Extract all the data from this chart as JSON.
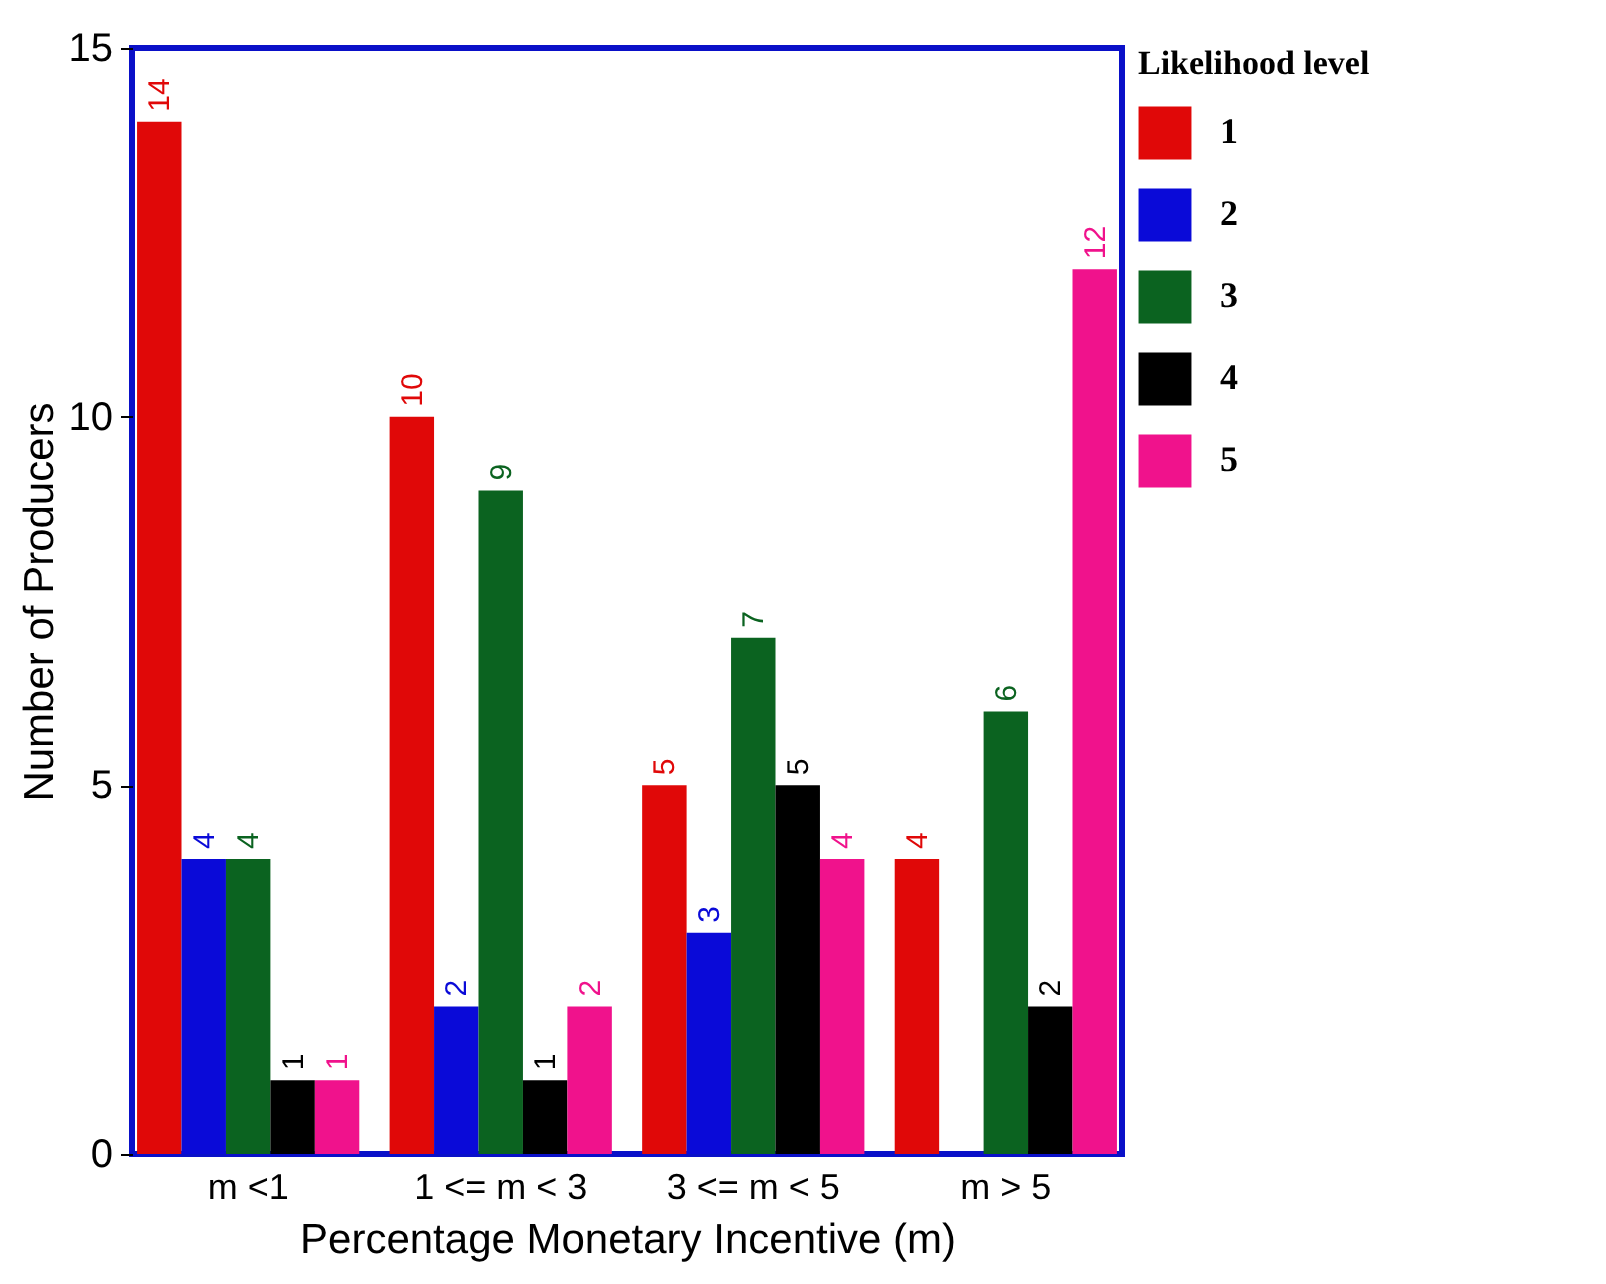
{
  "chart_data": {
    "type": "bar",
    "xlabel": "Percentage Monetary Incentive (m)",
    "ylabel": "Number of Producers",
    "legend_title": "Likelihood level",
    "categories": [
      "m <1",
      "1 <= m < 3",
      "3 <= m < 5",
      "m > 5"
    ],
    "series": [
      {
        "name": "1",
        "color": "#e00808",
        "values": [
          14,
          10,
          5,
          4
        ]
      },
      {
        "name": "2",
        "color": "#0a0ad8",
        "values": [
          4,
          2,
          3,
          null
        ]
      },
      {
        "name": "3",
        "color": "#0b6320",
        "values": [
          4,
          9,
          7,
          6
        ]
      },
      {
        "name": "4",
        "color": "#000000",
        "values": [
          1,
          1,
          5,
          2
        ]
      },
      {
        "name": "5",
        "color": "#f0128c",
        "values": [
          1,
          2,
          4,
          12
        ]
      }
    ],
    "ylim": [
      0,
      15
    ],
    "yticks": [
      0,
      5,
      10,
      15
    ],
    "data_labels": true,
    "legend": "top right",
    "grid": false
  }
}
